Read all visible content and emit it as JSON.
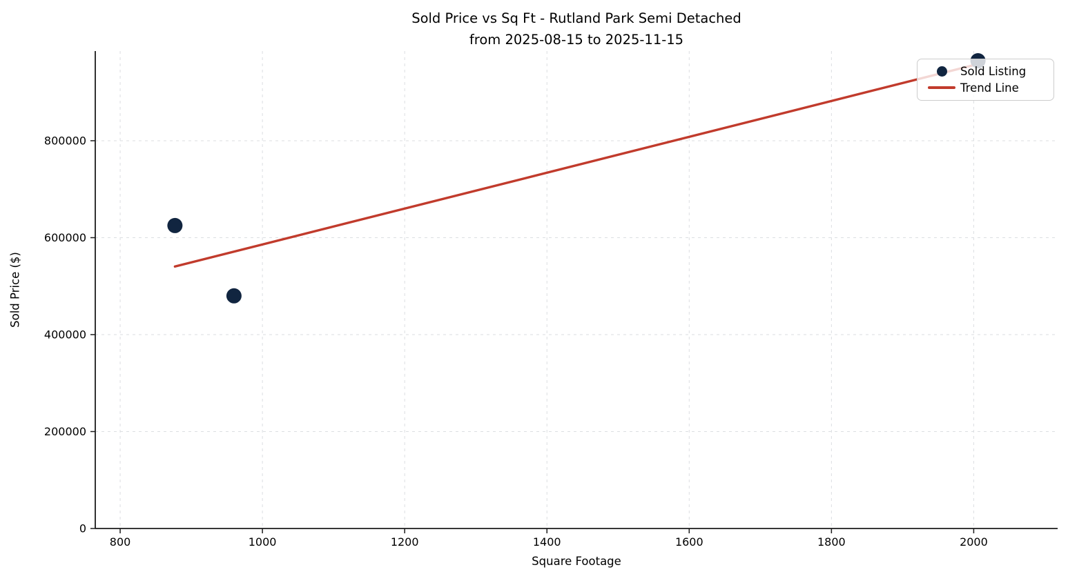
{
  "title": {
    "line1": "Sold Price vs Sq Ft - Rutland Park Semi Detached",
    "line2": "from 2025-08-15 to 2025-11-15"
  },
  "chart_data": {
    "type": "scatter",
    "title": "Sold Price vs Sq Ft - Rutland Park Semi Detached from 2025-08-15 to 2025-11-15",
    "xlabel": "Square Footage",
    "ylabel": "Sold Price ($)",
    "points": [
      {
        "sqft": 877,
        "price": 625000
      },
      {
        "sqft": 960,
        "price": 480000
      },
      {
        "sqft": 2006,
        "price": 965000
      }
    ],
    "trend": {
      "x1": 877,
      "y1": 540500,
      "x2": 2006,
      "y2": 958250
    },
    "x_ticks": [
      800,
      1000,
      1200,
      1400,
      1600,
      1800,
      2000
    ],
    "y_ticks": [
      0,
      200000,
      400000,
      600000,
      800000
    ],
    "xlim": [
      765,
      2118
    ],
    "ylim": [
      0,
      985000
    ],
    "grid": true,
    "legend": {
      "position": "upper right",
      "items": [
        {
          "label": "Sold Listing",
          "type": "marker"
        },
        {
          "label": "Trend Line",
          "type": "line"
        }
      ]
    }
  },
  "colors": {
    "point": "#112540",
    "trend": "#C13B2C",
    "grid": "#DBDEE1",
    "axis": "#1A1A1A",
    "text": "#000000",
    "legend_border": "#CCCCCC"
  }
}
